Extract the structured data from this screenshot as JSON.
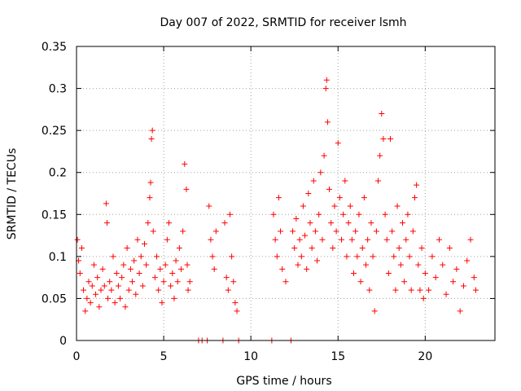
{
  "chart_data": {
    "type": "scatter",
    "title": "Day 007 of 2022, SRMTID for receiver lsmh",
    "xlabel": "GPS time / hours",
    "ylabel": "SRMTID / TECUs",
    "xlim": [
      0,
      24
    ],
    "ylim": [
      0,
      0.35
    ],
    "x_ticks": [
      0,
      5,
      10,
      15,
      20
    ],
    "y_ticks": [
      0,
      0.05,
      0.1,
      0.15,
      0.2,
      0.25,
      0.3,
      0.35
    ],
    "x_tick_labels": [
      "0",
      "5",
      "10",
      "15",
      "20"
    ],
    "y_tick_labels": [
      "0",
      "0.05",
      "0.1",
      "0.15",
      "0.2",
      "0.25",
      "0.3",
      "0.35"
    ],
    "grid": true,
    "marker": "+",
    "color": "#ff0000",
    "series": [
      {
        "name": "SRMTID",
        "points": [
          [
            0.05,
            0.12
          ],
          [
            0.12,
            0.095
          ],
          [
            0.2,
            0.08
          ],
          [
            0.3,
            0.11
          ],
          [
            0.4,
            0.06
          ],
          [
            0.5,
            0.035
          ],
          [
            0.6,
            0.05
          ],
          [
            0.7,
            0.07
          ],
          [
            0.8,
            0.045
          ],
          [
            0.9,
            0.065
          ],
          [
            1.0,
            0.09
          ],
          [
            1.1,
            0.055
          ],
          [
            1.2,
            0.075
          ],
          [
            1.3,
            0.04
          ],
          [
            1.4,
            0.06
          ],
          [
            1.5,
            0.085
          ],
          [
            1.6,
            0.065
          ],
          [
            1.7,
            0.163
          ],
          [
            1.75,
            0.14
          ],
          [
            1.8,
            0.05
          ],
          [
            1.9,
            0.07
          ],
          [
            2.0,
            0.06
          ],
          [
            2.1,
            0.1
          ],
          [
            2.2,
            0.045
          ],
          [
            2.3,
            0.08
          ],
          [
            2.4,
            0.065
          ],
          [
            2.5,
            0.05
          ],
          [
            2.6,
            0.075
          ],
          [
            2.7,
            0.09
          ],
          [
            2.8,
            0.04
          ],
          [
            2.9,
            0.11
          ],
          [
            3.0,
            0.06
          ],
          [
            3.1,
            0.085
          ],
          [
            3.2,
            0.07
          ],
          [
            3.3,
            0.095
          ],
          [
            3.4,
            0.055
          ],
          [
            3.5,
            0.12
          ],
          [
            3.6,
            0.08
          ],
          [
            3.7,
            0.1
          ],
          [
            3.8,
            0.065
          ],
          [
            3.9,
            0.115
          ],
          [
            4.0,
            0.09
          ],
          [
            4.1,
            0.14
          ],
          [
            4.2,
            0.17
          ],
          [
            4.25,
            0.188
          ],
          [
            4.3,
            0.24
          ],
          [
            4.35,
            0.25
          ],
          [
            4.4,
            0.13
          ],
          [
            4.5,
            0.075
          ],
          [
            4.6,
            0.1
          ],
          [
            4.7,
            0.06
          ],
          [
            4.8,
            0.085
          ],
          [
            4.9,
            0.045
          ],
          [
            5.0,
            0.07
          ],
          [
            5.1,
            0.09
          ],
          [
            5.2,
            0.12
          ],
          [
            5.3,
            0.14
          ],
          [
            5.4,
            0.065
          ],
          [
            5.5,
            0.08
          ],
          [
            5.6,
            0.05
          ],
          [
            5.7,
            0.095
          ],
          [
            5.8,
            0.07
          ],
          [
            5.9,
            0.11
          ],
          [
            6.0,
            0.085
          ],
          [
            6.1,
            0.13
          ],
          [
            6.2,
            0.21
          ],
          [
            6.3,
            0.18
          ],
          [
            6.35,
            0.09
          ],
          [
            6.4,
            0.06
          ],
          [
            6.5,
            0.07
          ],
          [
            7.0,
            0.0
          ],
          [
            7.2,
            0.0
          ],
          [
            7.5,
            0.0
          ],
          [
            7.6,
            0.16
          ],
          [
            7.7,
            0.12
          ],
          [
            7.8,
            0.1
          ],
          [
            7.9,
            0.085
          ],
          [
            8.0,
            0.13
          ],
          [
            8.4,
            0.0
          ],
          [
            8.5,
            0.14
          ],
          [
            8.6,
            0.075
          ],
          [
            8.7,
            0.06
          ],
          [
            8.8,
            0.15
          ],
          [
            8.9,
            0.1
          ],
          [
            9.0,
            0.07
          ],
          [
            9.1,
            0.045
          ],
          [
            9.2,
            0.035
          ],
          [
            9.3,
            0.0
          ],
          [
            11.2,
            0.0
          ],
          [
            11.3,
            0.15
          ],
          [
            11.4,
            0.12
          ],
          [
            11.5,
            0.1
          ],
          [
            11.6,
            0.17
          ],
          [
            11.7,
            0.13
          ],
          [
            11.8,
            0.085
          ],
          [
            12.0,
            0.07
          ],
          [
            12.3,
            0.0
          ],
          [
            12.4,
            0.13
          ],
          [
            12.5,
            0.11
          ],
          [
            12.6,
            0.145
          ],
          [
            12.7,
            0.09
          ],
          [
            12.8,
            0.12
          ],
          [
            12.9,
            0.1
          ],
          [
            13.0,
            0.16
          ],
          [
            13.1,
            0.125
          ],
          [
            13.2,
            0.085
          ],
          [
            13.3,
            0.175
          ],
          [
            13.4,
            0.14
          ],
          [
            13.5,
            0.11
          ],
          [
            13.6,
            0.19
          ],
          [
            13.7,
            0.13
          ],
          [
            13.8,
            0.095
          ],
          [
            13.9,
            0.15
          ],
          [
            14.0,
            0.2
          ],
          [
            14.1,
            0.12
          ],
          [
            14.2,
            0.22
          ],
          [
            14.3,
            0.3
          ],
          [
            14.35,
            0.31
          ],
          [
            14.4,
            0.26
          ],
          [
            14.5,
            0.18
          ],
          [
            14.6,
            0.14
          ],
          [
            14.7,
            0.11
          ],
          [
            14.8,
            0.16
          ],
          [
            14.9,
            0.13
          ],
          [
            15.0,
            0.235
          ],
          [
            15.1,
            0.17
          ],
          [
            15.2,
            0.12
          ],
          [
            15.3,
            0.15
          ],
          [
            15.4,
            0.19
          ],
          [
            15.5,
            0.1
          ],
          [
            15.6,
            0.14
          ],
          [
            15.7,
            0.16
          ],
          [
            15.8,
            0.12
          ],
          [
            15.9,
            0.08
          ],
          [
            16.0,
            0.13
          ],
          [
            16.1,
            0.1
          ],
          [
            16.2,
            0.15
          ],
          [
            16.3,
            0.07
          ],
          [
            16.4,
            0.11
          ],
          [
            16.5,
            0.17
          ],
          [
            16.6,
            0.09
          ],
          [
            16.7,
            0.12
          ],
          [
            16.8,
            0.06
          ],
          [
            16.9,
            0.14
          ],
          [
            17.0,
            0.1
          ],
          [
            17.1,
            0.035
          ],
          [
            17.2,
            0.13
          ],
          [
            17.3,
            0.19
          ],
          [
            17.4,
            0.22
          ],
          [
            17.5,
            0.27
          ],
          [
            17.6,
            0.24
          ],
          [
            17.7,
            0.15
          ],
          [
            17.8,
            0.12
          ],
          [
            17.9,
            0.08
          ],
          [
            18.0,
            0.24
          ],
          [
            18.1,
            0.13
          ],
          [
            18.2,
            0.1
          ],
          [
            18.3,
            0.06
          ],
          [
            18.4,
            0.16
          ],
          [
            18.5,
            0.11
          ],
          [
            18.6,
            0.09
          ],
          [
            18.7,
            0.14
          ],
          [
            18.8,
            0.07
          ],
          [
            18.9,
            0.12
          ],
          [
            19.0,
            0.15
          ],
          [
            19.1,
            0.1
          ],
          [
            19.2,
            0.06
          ],
          [
            19.3,
            0.13
          ],
          [
            19.4,
            0.17
          ],
          [
            19.5,
            0.185
          ],
          [
            19.6,
            0.09
          ],
          [
            19.7,
            0.06
          ],
          [
            19.8,
            0.11
          ],
          [
            19.9,
            0.05
          ],
          [
            20.0,
            0.08
          ],
          [
            20.2,
            0.06
          ],
          [
            20.4,
            0.1
          ],
          [
            20.6,
            0.075
          ],
          [
            20.8,
            0.12
          ],
          [
            21.0,
            0.09
          ],
          [
            21.2,
            0.055
          ],
          [
            21.4,
            0.11
          ],
          [
            21.6,
            0.07
          ],
          [
            21.8,
            0.085
          ],
          [
            22.0,
            0.035
          ],
          [
            22.2,
            0.065
          ],
          [
            22.4,
            0.095
          ],
          [
            22.6,
            0.12
          ],
          [
            22.8,
            0.075
          ],
          [
            22.9,
            0.06
          ]
        ]
      }
    ]
  }
}
